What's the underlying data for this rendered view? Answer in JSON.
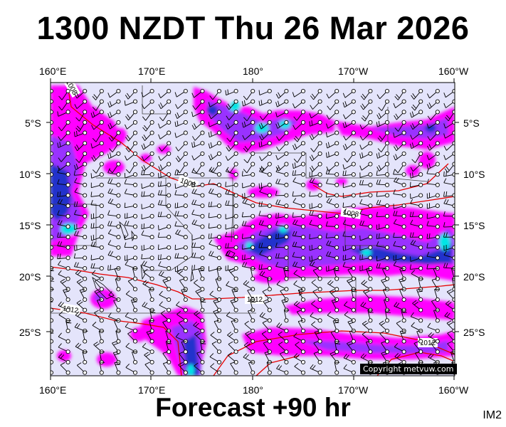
{
  "header": {
    "title": "1300 NZDT Thu 26 Mar 2026"
  },
  "footer": {
    "forecast": "Forecast +90 hr",
    "image_id": "IM2"
  },
  "copyright": "Copyright metvuw.com",
  "axes": {
    "top_lon": [
      "160°E",
      "170°E",
      "180°",
      "170°W",
      "160°W"
    ],
    "bottom_lon": [
      "160°E",
      "170°E",
      "180°",
      "170°W",
      "160°W"
    ],
    "left_lat": [
      "5°S",
      "10°S",
      "15°S",
      "20°S",
      "25°S"
    ],
    "right_lat": [
      "5°S",
      "10°S",
      "15°S",
      "20°S",
      "25°S"
    ]
  },
  "isobars": [
    {
      "label": "1008",
      "value": 1008
    },
    {
      "label": "1008",
      "value": 1008
    },
    {
      "label": "1008",
      "value": 1008
    },
    {
      "label": "1012",
      "value": 1012
    },
    {
      "label": "1012",
      "value": 1012
    },
    {
      "label": "1012",
      "value": 1012
    }
  ],
  "colors": {
    "background": "#e4e4fb",
    "rain_light": "#ff00ff",
    "rain_mid": "#9933ff",
    "rain_heavy": "#2233cc",
    "rain_extreme": "#00e5e5",
    "isobar": "#e60000"
  }
}
